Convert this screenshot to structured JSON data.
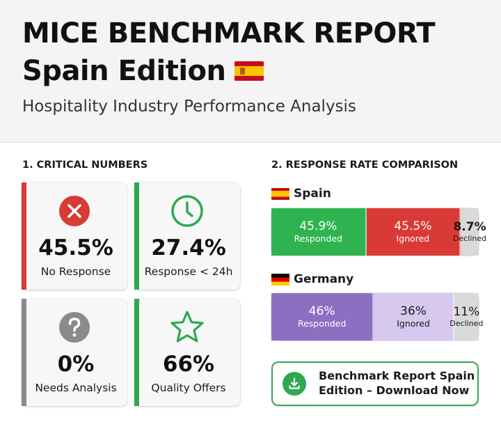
{
  "header": {
    "title_line1": "MICE BENCHMARK REPORT",
    "title_line2": "Spain Edition",
    "title_flag_icon": "spain-flag-icon",
    "subtitle": "Hospitality Industry Performance Analysis"
  },
  "critical": {
    "section_title": "1. CRITICAL NUMBERS",
    "cards": [
      {
        "value": "45.5%",
        "label": "No Response",
        "icon": "x-circle-icon",
        "color": "#d83a34"
      },
      {
        "value": "27.4%",
        "label": "Response < 24h",
        "icon": "clock-icon",
        "color": "#2fa84f"
      },
      {
        "value": "0%",
        "label": "Needs Analysis",
        "icon": "question-circle-icon",
        "color": "#8a8a8a"
      },
      {
        "value": "66%",
        "label": "Quality Offers",
        "icon": "star-icon",
        "color": "#2fa84f"
      }
    ]
  },
  "comparison": {
    "section_title": "2. RESPONSE RATE COMPARISON",
    "countries": [
      {
        "name": "Spain",
        "flag_icon": "spain-flag-icon",
        "segments": [
          {
            "pct": "45.9%",
            "label": "Responded",
            "share": 45.9,
            "color": "#2fb350"
          },
          {
            "pct": "45.5%",
            "label": "Ignored",
            "share": 45.5,
            "color": "#da3a36"
          },
          {
            "pct": "8.7%",
            "label": "Declined",
            "share": 8.7,
            "color": "#d9d9d9"
          }
        ]
      },
      {
        "name": "Germany",
        "flag_icon": "germany-flag-icon",
        "segments": [
          {
            "pct": "46%",
            "label": "Responded",
            "share": 46,
            "color": "#8d6fc2"
          },
          {
            "pct": "36%",
            "label": "Ignored",
            "share": 36,
            "color": "#d6c8ef"
          },
          {
            "pct": "11%",
            "label": "Declined",
            "share": 11,
            "color": "#d9d9d9"
          }
        ]
      }
    ]
  },
  "download": {
    "label_line1": "Benchmark Report Spain",
    "label_line2": "Edition – Download Now",
    "icon": "download-icon",
    "color": "#2fa84f"
  }
}
